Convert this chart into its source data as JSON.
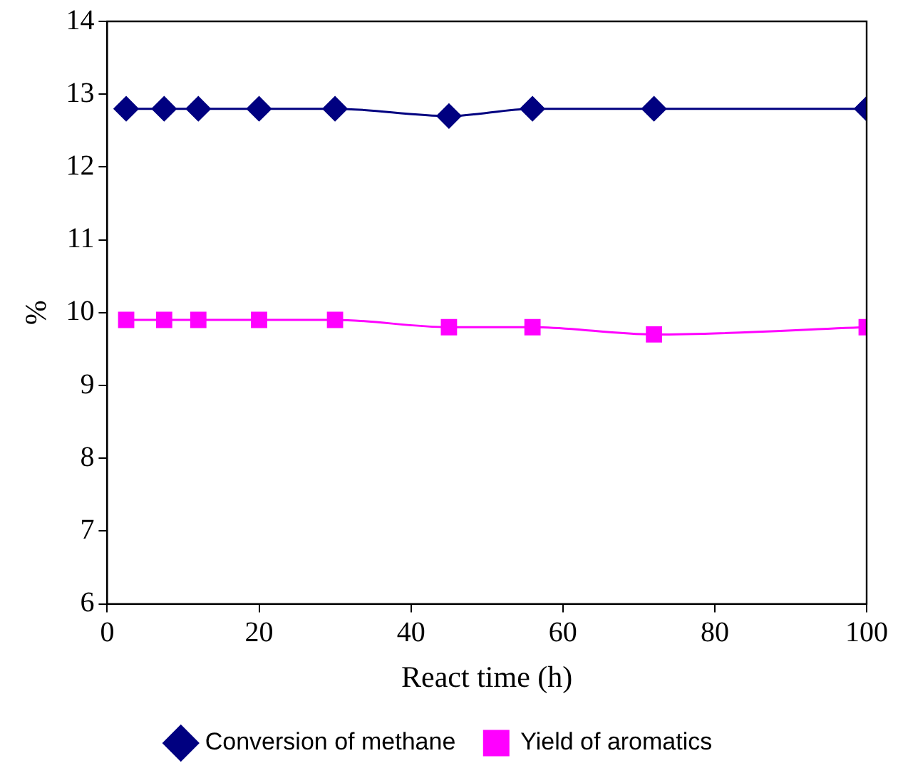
{
  "chart_data": {
    "type": "line",
    "xlabel": "React time (h)",
    "ylabel": "%",
    "xlim": [
      0,
      100
    ],
    "xticks": [
      0,
      20,
      40,
      60,
      80,
      100
    ],
    "ylim": [
      6,
      14
    ],
    "yticks": [
      6,
      7,
      8,
      9,
      10,
      11,
      12,
      13,
      14
    ],
    "grid": false,
    "legend": "bottom",
    "series": [
      {
        "name": "Conversion of methane",
        "color": "#000080",
        "marker": "diamond",
        "x": [
          2.5,
          7.5,
          12,
          20,
          30,
          45,
          56,
          72,
          100
        ],
        "values": [
          12.8,
          12.8,
          12.8,
          12.8,
          12.8,
          12.7,
          12.8,
          12.8,
          12.8
        ]
      },
      {
        "name": "Yield of aromatics",
        "color": "#ff00ff",
        "marker": "square",
        "x": [
          2.5,
          7.5,
          12,
          20,
          30,
          45,
          56,
          72,
          100
        ],
        "values": [
          9.9,
          9.9,
          9.9,
          9.9,
          9.9,
          9.8,
          9.8,
          9.7,
          9.8
        ]
      }
    ]
  }
}
